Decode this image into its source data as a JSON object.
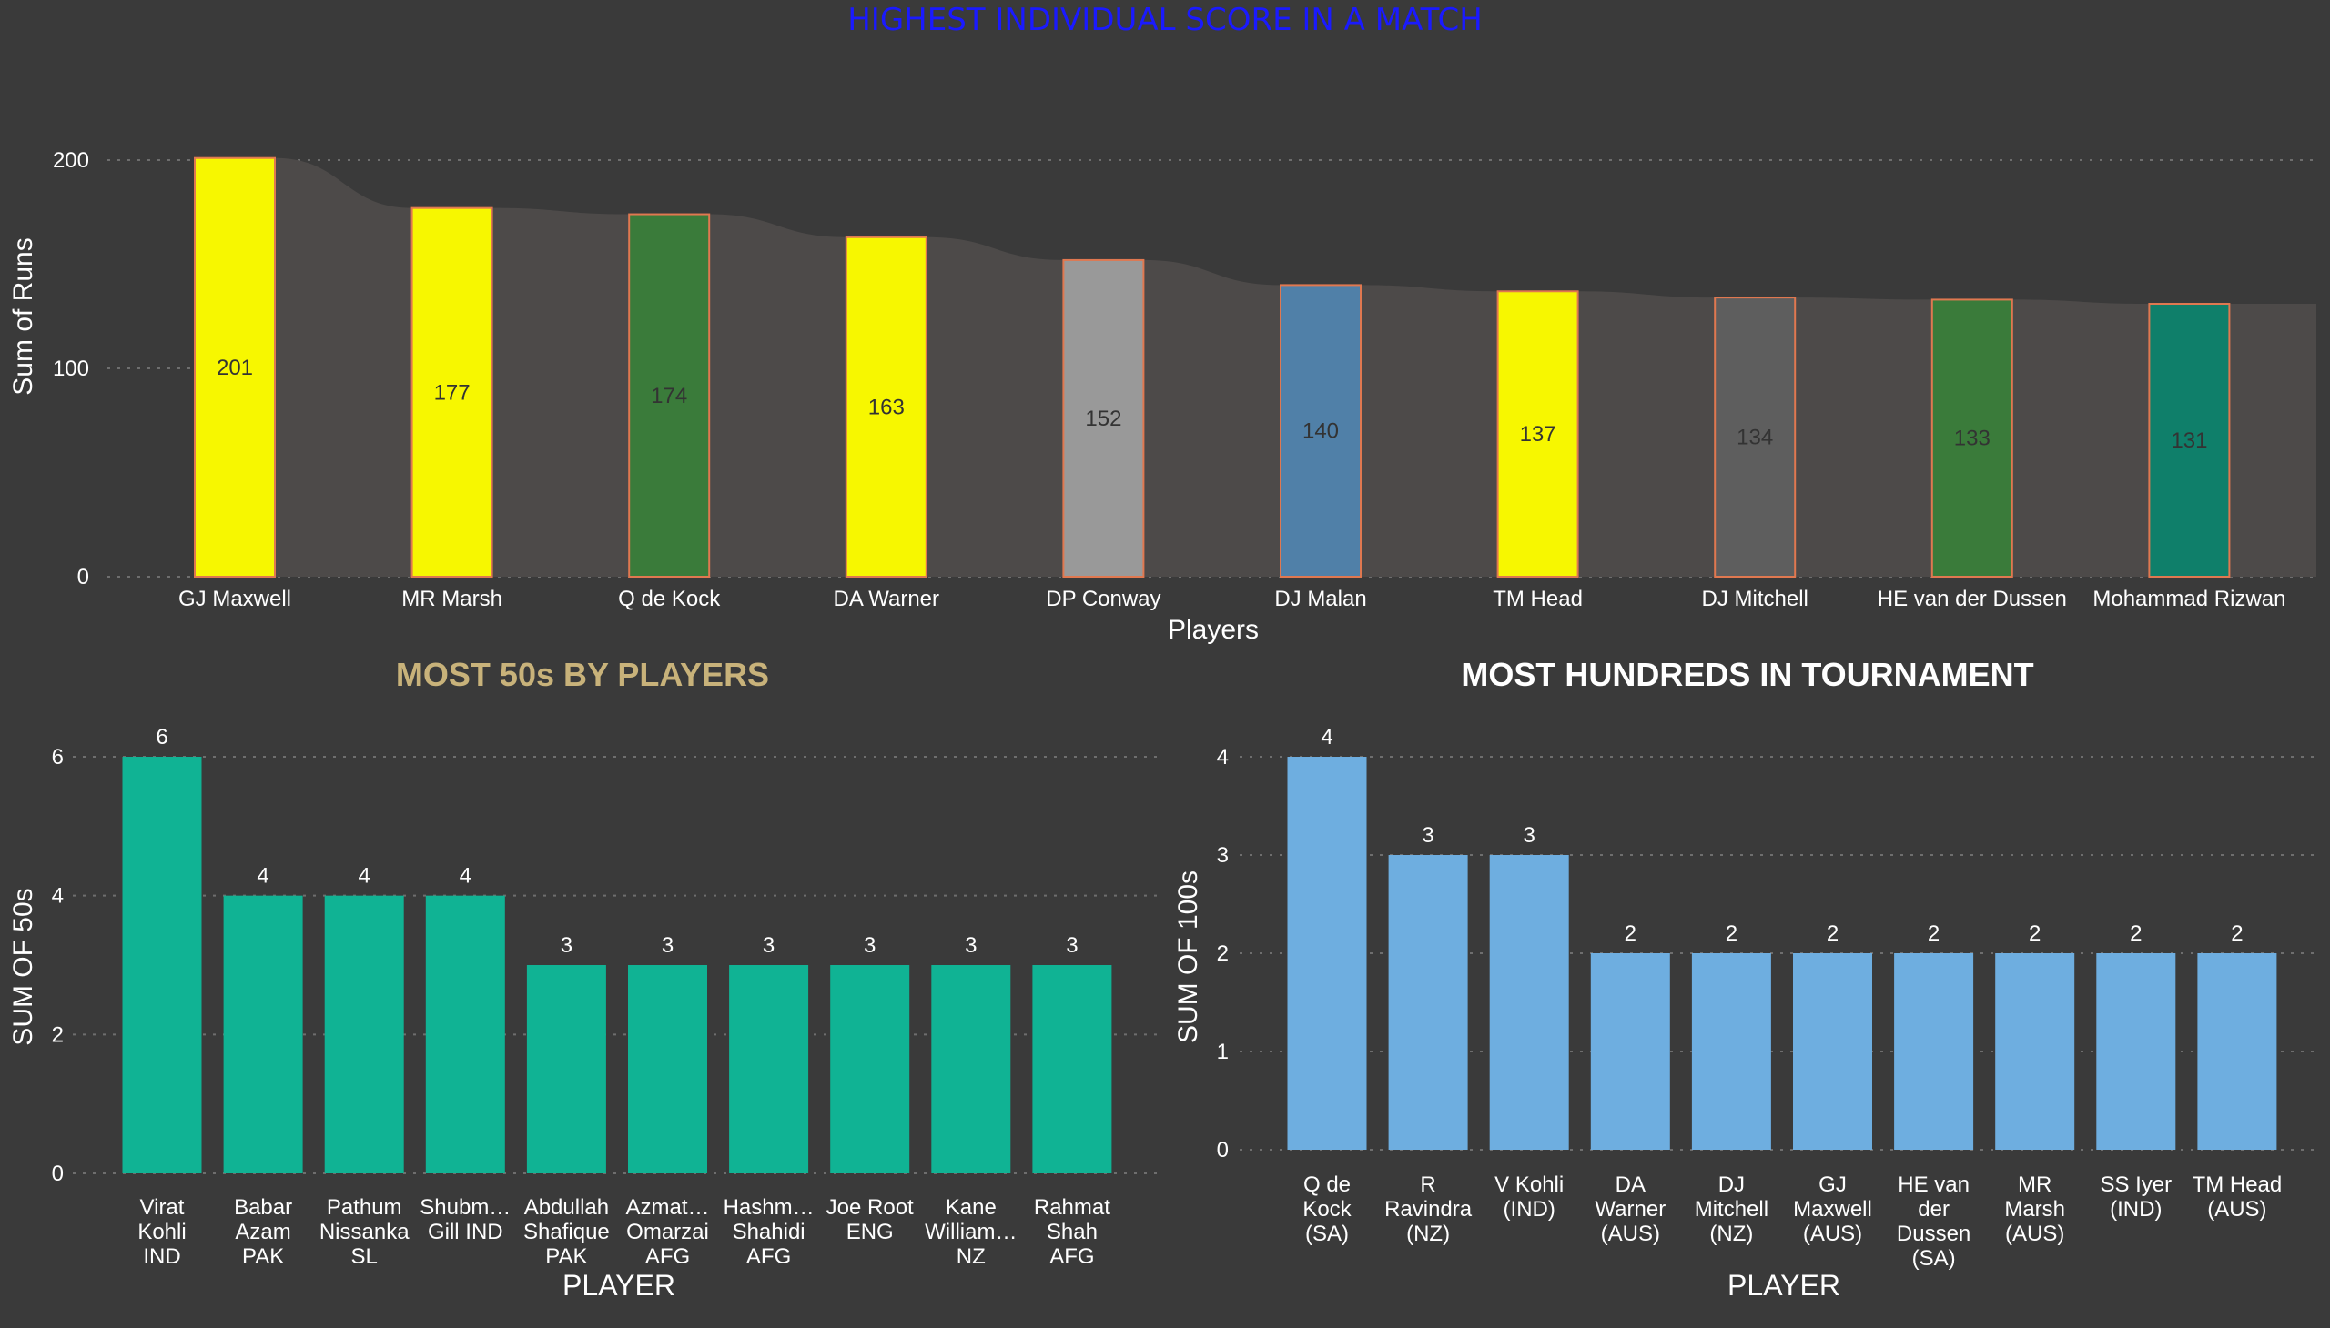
{
  "colors": {
    "background": "#3a3a3a",
    "yellow": "#f7f700",
    "green": "#3a7b3a",
    "grey": "#999999",
    "steelblue": "#5080a8",
    "darkgrey": "#5e5e5e",
    "teal": "#0f7f6a",
    "teal_bright": "#10b394",
    "lightblue": "#6eaee0",
    "bar_border": "#e07850",
    "ribbon": "#4d4a49"
  },
  "chart_data": [
    {
      "type": "bar",
      "title": "HIGHEST INDIVIDUAL SCORE IN A MATCH",
      "xlabel": "Players",
      "ylabel": "Sum of Runs",
      "ylim": [
        0,
        200
      ],
      "yticks": [
        "0",
        "100",
        "200"
      ],
      "grid": true,
      "categories": [
        "GJ Maxwell",
        "MR Marsh",
        "Q de Kock",
        "DA Warner",
        "DP Conway",
        "DJ Malan",
        "TM Head",
        "DJ Mitchell",
        "HE van der Dussen",
        "Mohammad Rizwan"
      ],
      "values": [
        201,
        177,
        174,
        163,
        152,
        140,
        137,
        134,
        133,
        131
      ],
      "bar_colors": [
        "yellow",
        "yellow",
        "green",
        "yellow",
        "grey",
        "steelblue",
        "yellow",
        "darkgrey",
        "green",
        "teal"
      ],
      "value_labels": [
        "201",
        "177",
        "174",
        "163",
        "152",
        "140",
        "137",
        "134",
        "133",
        "131"
      ]
    },
    {
      "type": "bar",
      "title": "MOST 50s BY PLAYERS",
      "xlabel": "PLAYER",
      "ylabel": "SUM OF 50s",
      "ylim": [
        0,
        6
      ],
      "yticks": [
        "0",
        "2",
        "4",
        "6"
      ],
      "grid": true,
      "categories": [
        [
          "Virat",
          "Kohli",
          "IND"
        ],
        [
          "Babar",
          "Azam",
          "PAK"
        ],
        [
          "Pathum",
          "Nissanka",
          "SL"
        ],
        [
          "Shubm…",
          "Gill IND"
        ],
        [
          "Abdullah",
          "Shafique",
          "PAK"
        ],
        [
          "Azmat…",
          "Omarzai",
          "AFG"
        ],
        [
          "Hashm…",
          "Shahidi",
          "AFG"
        ],
        [
          "Joe Root",
          "ENG"
        ],
        [
          "Kane",
          "William…",
          "NZ"
        ],
        [
          "Rahmat",
          "Shah",
          "AFG"
        ]
      ],
      "values": [
        6,
        4,
        4,
        4,
        3,
        3,
        3,
        3,
        3,
        3
      ],
      "value_labels": [
        "6",
        "4",
        "4",
        "4",
        "3",
        "3",
        "3",
        "3",
        "3",
        "3"
      ]
    },
    {
      "type": "bar",
      "title": "MOST HUNDREDS IN TOURNAMENT",
      "xlabel": "PLAYER",
      "ylabel": "SUM OF 100s",
      "ylim": [
        0,
        4
      ],
      "yticks": [
        "0",
        "1",
        "2",
        "3",
        "4"
      ],
      "grid": true,
      "categories": [
        [
          "Q de",
          "Kock",
          "(SA)"
        ],
        [
          "R",
          "Ravindra",
          "(NZ)"
        ],
        [
          "V Kohli",
          "(IND)"
        ],
        [
          "DA",
          "Warner",
          "(AUS)"
        ],
        [
          "DJ",
          "Mitchell",
          "(NZ)"
        ],
        [
          "GJ",
          "Maxwell",
          "(AUS)"
        ],
        [
          "HE van",
          "der",
          "Dussen",
          "(SA)"
        ],
        [
          "MR",
          "Marsh",
          "(AUS)"
        ],
        [
          "SS Iyer",
          "(IND)"
        ],
        [
          "TM Head",
          "(AUS)"
        ]
      ],
      "values": [
        4,
        3,
        3,
        2,
        2,
        2,
        2,
        2,
        2,
        2
      ],
      "value_labels": [
        "4",
        "3",
        "3",
        "2",
        "2",
        "2",
        "2",
        "2",
        "2",
        "2"
      ]
    }
  ]
}
